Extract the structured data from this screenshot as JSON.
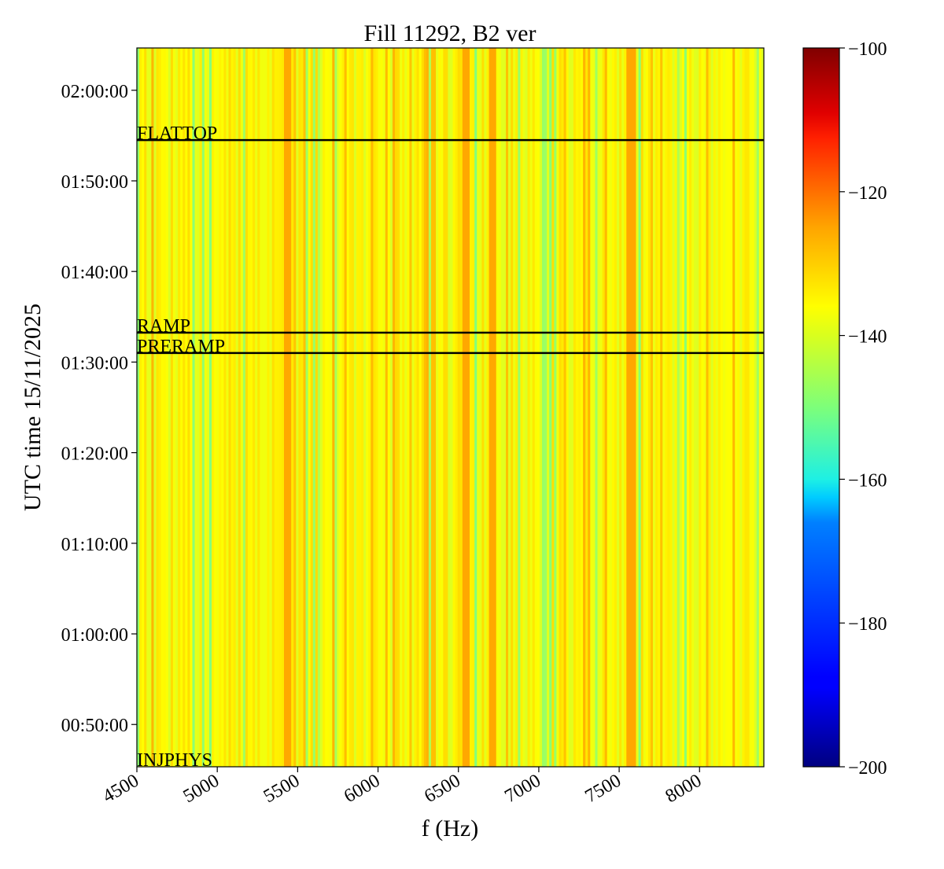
{
  "chart_data": {
    "type": "heatmap",
    "title": "Fill 11292, B2 ver",
    "xlabel": "f (Hz)",
    "ylabel": "UTC time 15/11/2025",
    "xlim": [
      4500,
      8400
    ],
    "ylim": [
      "00:45:20",
      "02:04:40"
    ],
    "x_ticks": [
      4500,
      5000,
      5500,
      6000,
      6500,
      7000,
      7500,
      8000
    ],
    "y_ticks": [
      "00:50:00",
      "01:00:00",
      "01:10:00",
      "01:20:00",
      "01:30:00",
      "01:40:00",
      "01:50:00",
      "02:00:00"
    ],
    "colorbar": {
      "colormap": "jet",
      "range": [
        -200,
        -100
      ],
      "ticks": [
        -100,
        -120,
        -140,
        -160,
        -180,
        -200
      ],
      "tick_labels": [
        "−100",
        "−120",
        "−140",
        "−160",
        "−180",
        "−200"
      ]
    },
    "phase_markers": [
      {
        "label": "FLATTOP",
        "time": "01:54:30"
      },
      {
        "label": "RAMP",
        "time": "01:33:15"
      },
      {
        "label": "PRERAMP",
        "time": "01:31:00"
      },
      {
        "label": "INJPHYS",
        "time": "00:45:20"
      }
    ],
    "typical_value_range": [
      -145,
      -130
    ],
    "notable_bands_hz": [
      5430,
      6540,
      6700,
      7560,
      7580
    ],
    "grid": false
  }
}
